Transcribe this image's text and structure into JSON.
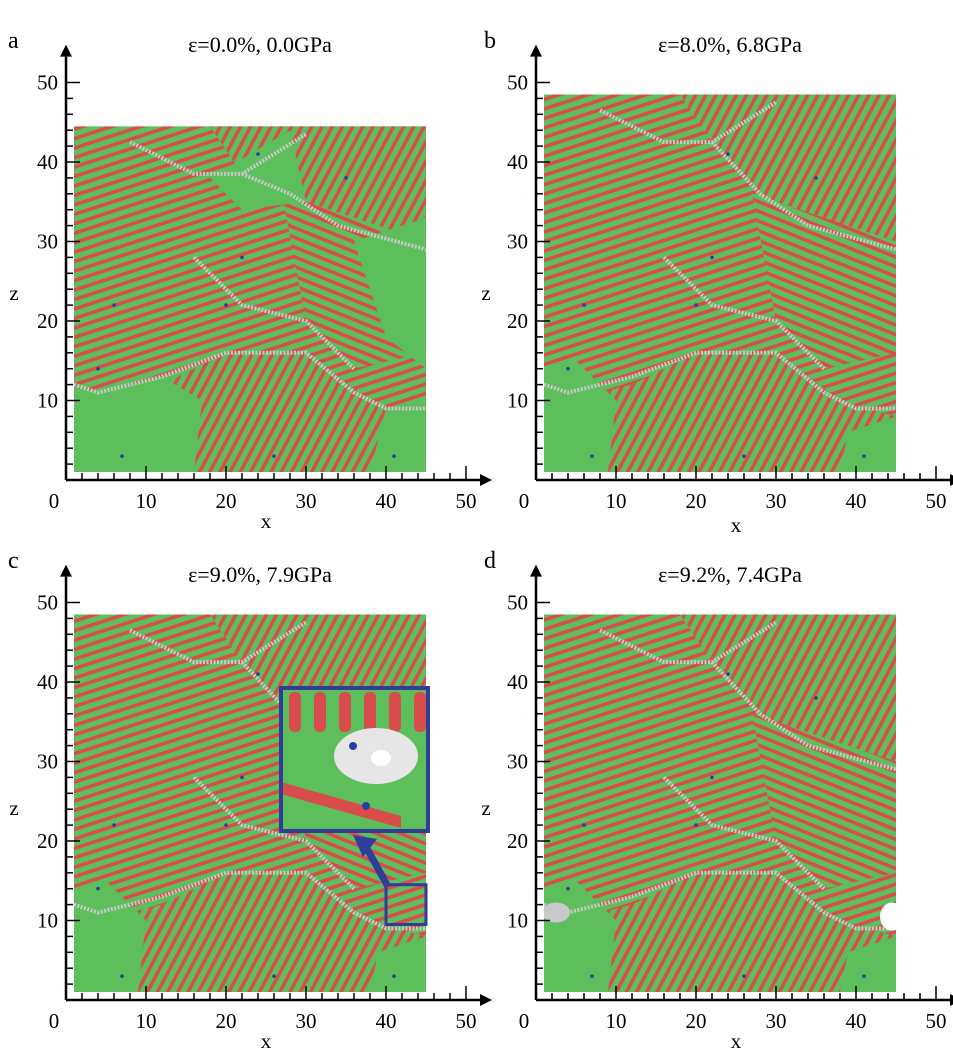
{
  "figure": {
    "colors": {
      "fcc_green": "#5cbf5c",
      "hcp_red": "#d94c4c",
      "boundary_gray": "#c9c9c9",
      "defect_blue": "#2b3f9e",
      "inset_frame": "#2e3f99",
      "axis": "#000000"
    },
    "panels": [
      {
        "id": "a",
        "letter": "a",
        "title": "ε=0.0%, 0.0GPa",
        "x_label": "x",
        "z_label": "z",
        "x_ticks": [
          "0",
          "10",
          "20",
          "30",
          "40",
          "50"
        ],
        "z_ticks": [
          "10",
          "20",
          "30",
          "40",
          "50"
        ],
        "x_range": [
          0,
          50
        ],
        "z_range": [
          0,
          50
        ],
        "box_extent": {
          "x": [
            1,
            45
          ],
          "z": [
            1,
            44.5
          ]
        },
        "has_inset": false,
        "has_void": false
      },
      {
        "id": "b",
        "letter": "b",
        "title": "ε=8.0%, 6.8GPa",
        "x_label": "x",
        "z_label": "z",
        "x_ticks": [
          "0",
          "10",
          "20",
          "30",
          "40",
          "50"
        ],
        "z_ticks": [
          "10",
          "20",
          "30",
          "40",
          "50"
        ],
        "x_range": [
          0,
          50
        ],
        "z_range": [
          0,
          50
        ],
        "box_extent": {
          "x": [
            1,
            45
          ],
          "z": [
            1,
            48.5
          ]
        },
        "has_inset": false,
        "has_void": false
      },
      {
        "id": "c",
        "letter": "c",
        "title": "ε=9.0%, 7.9GPa",
        "x_label": "x",
        "z_label": "z",
        "x_ticks": [
          "0",
          "10",
          "20",
          "30",
          "40",
          "50"
        ],
        "z_ticks": [
          "10",
          "20",
          "30",
          "40",
          "50"
        ],
        "x_range": [
          0,
          50
        ],
        "z_range": [
          0,
          50
        ],
        "box_extent": {
          "x": [
            1,
            45
          ],
          "z": [
            1,
            48.5
          ]
        },
        "has_inset": true,
        "inset_source": {
          "x": [
            40,
            45
          ],
          "z": [
            9.5,
            14.5
          ]
        },
        "has_void": false
      },
      {
        "id": "d",
        "letter": "d",
        "title": "ε=9.2%, 7.4GPa",
        "x_label": "x",
        "z_label": "z",
        "x_ticks": [
          "0",
          "10",
          "20",
          "30",
          "40",
          "50"
        ],
        "z_ticks": [
          "10",
          "20",
          "30",
          "40",
          "50"
        ],
        "x_range": [
          0,
          50
        ],
        "z_range": [
          0,
          50
        ],
        "box_extent": {
          "x": [
            1,
            45
          ],
          "z": [
            1,
            48.5
          ]
        },
        "has_inset": false,
        "has_void": true
      }
    ]
  }
}
